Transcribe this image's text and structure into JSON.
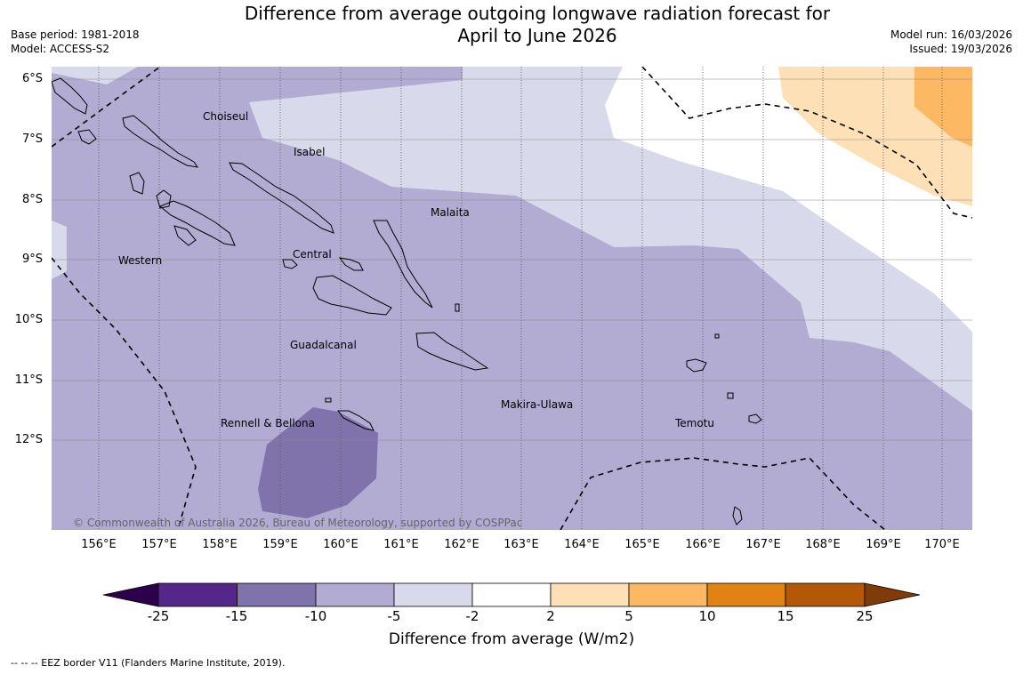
{
  "title_line1": "Difference from average outgoing longwave radiation forecast for",
  "title_line2": "April to June 2026",
  "base_period": "Base period: 1981-2018",
  "model": "Model: ACCESS-S2",
  "model_run": "Model run: 16/03/2026",
  "issued": "Issued: 19/03/2026",
  "copyright": "© Commonwealth of Australia 2026, Bureau of Meteorology, supported by COSPPac",
  "lat_labels": [
    "6°S",
    "7°S",
    "8°S",
    "9°S",
    "10°S",
    "11°S",
    "12°S"
  ],
  "lon_labels": [
    "156°E",
    "157°E",
    "158°E",
    "159°E",
    "160°E",
    "161°E",
    "162°E",
    "163°E",
    "164°E",
    "165°E",
    "166°E",
    "167°E",
    "168°E",
    "169°E",
    "170°E"
  ],
  "places": [
    "Choiseul",
    "Isabel",
    "Malaita",
    "Western",
    "Central",
    "Guadalcanal",
    "Makira-Ulawa",
    "Rennell & Bellona",
    "Temotu"
  ],
  "colorbar": {
    "ticks": [
      "-25",
      "-15",
      "-10",
      "-5",
      "-2",
      "2",
      "5",
      "10",
      "15",
      "25"
    ],
    "colors": [
      "#542788",
      "#8073ac",
      "#b2abd2",
      "#d8daeb",
      "#ffffff",
      "#fee0b6",
      "#fdb863",
      "#e08214",
      "#b35806"
    ],
    "under_color": "#2d004b",
    "over_color": "#7f3b08",
    "title": "Difference from average (W/m2)"
  },
  "footnote": "--  --  -- EEZ border V11 (Flanders Marine Institute, 2019)."
}
